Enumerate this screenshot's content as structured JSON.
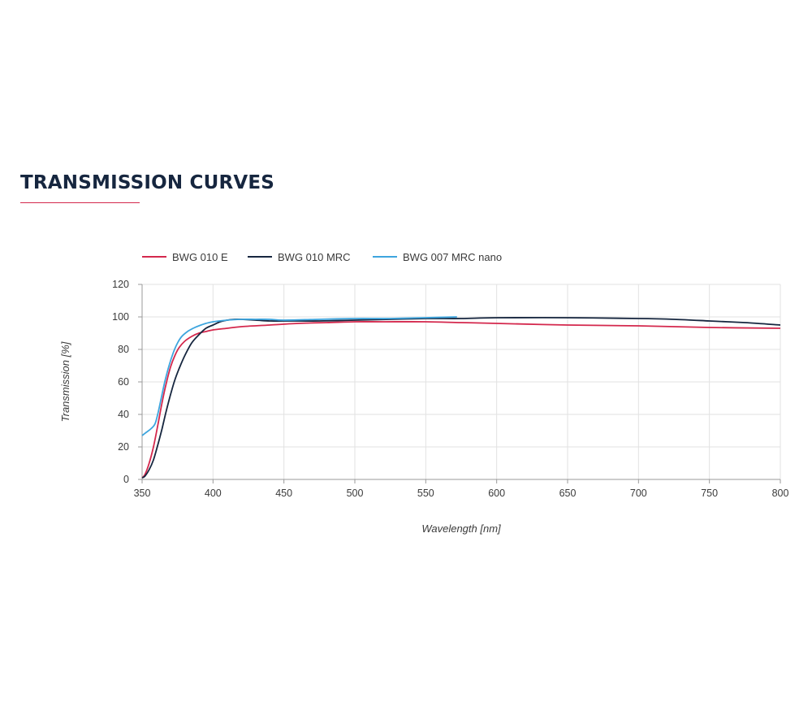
{
  "page": {
    "title": "TRANSMISSION CURVES"
  },
  "chart_data": {
    "type": "line",
    "title": "",
    "xlabel": "Wavelength [nm]",
    "ylabel": "Transmission [%]",
    "xlim": [
      350,
      800
    ],
    "ylim": [
      0,
      120
    ],
    "x_ticks": [
      350,
      400,
      450,
      500,
      550,
      600,
      650,
      700,
      750,
      800
    ],
    "y_ticks": [
      0,
      20,
      40,
      60,
      80,
      100,
      120
    ],
    "grid": true,
    "legend_position": "top-left",
    "series": [
      {
        "name": "BWG 010 E",
        "color": "#d4284d",
        "points": [
          [
            350,
            1
          ],
          [
            352,
            3
          ],
          [
            355,
            10
          ],
          [
            358,
            20
          ],
          [
            361,
            33
          ],
          [
            364,
            47
          ],
          [
            367,
            59
          ],
          [
            370,
            69
          ],
          [
            373,
            76
          ],
          [
            376,
            81
          ],
          [
            380,
            85
          ],
          [
            385,
            88
          ],
          [
            390,
            90
          ],
          [
            395,
            91
          ],
          [
            400,
            92
          ],
          [
            410,
            93
          ],
          [
            420,
            94
          ],
          [
            440,
            95
          ],
          [
            460,
            96
          ],
          [
            480,
            96.5
          ],
          [
            500,
            97
          ],
          [
            520,
            97
          ],
          [
            550,
            97
          ],
          [
            575,
            96.5
          ],
          [
            600,
            96
          ],
          [
            650,
            95
          ],
          [
            700,
            94.5
          ],
          [
            750,
            93.5
          ],
          [
            800,
            93
          ]
        ]
      },
      {
        "name": "BWG 010 MRC",
        "color": "#16263f",
        "points": [
          [
            350,
            1
          ],
          [
            352,
            2
          ],
          [
            355,
            6
          ],
          [
            358,
            12
          ],
          [
            361,
            21
          ],
          [
            364,
            31
          ],
          [
            367,
            42
          ],
          [
            370,
            52
          ],
          [
            373,
            61
          ],
          [
            376,
            68
          ],
          [
            380,
            76
          ],
          [
            385,
            84
          ],
          [
            390,
            89
          ],
          [
            395,
            93
          ],
          [
            400,
            95
          ],
          [
            405,
            97
          ],
          [
            410,
            98
          ],
          [
            415,
            98.5
          ],
          [
            420,
            98.5
          ],
          [
            430,
            98
          ],
          [
            440,
            97.5
          ],
          [
            450,
            97.5
          ],
          [
            475,
            97.5
          ],
          [
            500,
            98
          ],
          [
            525,
            98.5
          ],
          [
            550,
            99
          ],
          [
            575,
            99
          ],
          [
            600,
            99.5
          ],
          [
            650,
            99.5
          ],
          [
            700,
            99
          ],
          [
            725,
            98.5
          ],
          [
            750,
            97.5
          ],
          [
            775,
            96.5
          ],
          [
            800,
            95
          ]
        ]
      },
      {
        "name": "BWG 007 MRC nano",
        "color": "#3da5de",
        "points": [
          [
            350,
            27
          ],
          [
            353,
            29
          ],
          [
            356,
            31
          ],
          [
            359,
            34
          ],
          [
            361,
            40
          ],
          [
            363,
            48
          ],
          [
            366,
            60
          ],
          [
            369,
            70
          ],
          [
            372,
            78
          ],
          [
            375,
            84
          ],
          [
            378,
            88
          ],
          [
            382,
            91
          ],
          [
            386,
            93
          ],
          [
            390,
            94.5
          ],
          [
            395,
            96
          ],
          [
            400,
            97
          ],
          [
            410,
            98
          ],
          [
            420,
            98.5
          ],
          [
            430,
            98.5
          ],
          [
            440,
            98.5
          ],
          [
            450,
            98
          ],
          [
            475,
            98.5
          ],
          [
            500,
            99
          ],
          [
            525,
            99
          ],
          [
            550,
            99.5
          ],
          [
            572,
            100
          ]
        ]
      }
    ]
  }
}
